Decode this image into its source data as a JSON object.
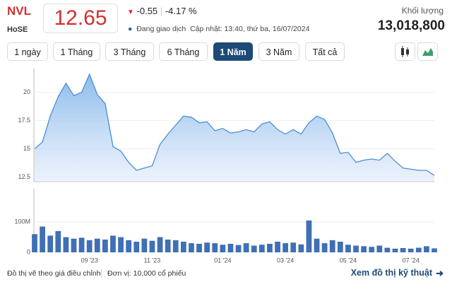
{
  "header": {
    "ticker": "NVL",
    "exchange": "HoSE",
    "price": "12.65",
    "change": "-0.55",
    "change_pct": "-4.17 %",
    "status": "Đang giao dịch",
    "updated": "Cập nhật: 13:40, thứ ba, 16/07/2024",
    "volume_label": "Khối lượng",
    "volume": "13,018,800"
  },
  "range_buttons": {
    "items": [
      "1 ngày",
      "1 Tháng",
      "3 Tháng",
      "6 Tháng",
      "1 Năm",
      "3 Năm",
      "Tất cả"
    ],
    "active": 4
  },
  "chart_data": [
    {
      "type": "area",
      "color": "#4a8fd8",
      "values": [
        15.0,
        15.6,
        17.9,
        19.6,
        20.8,
        19.7,
        20.0,
        21.6,
        19.8,
        19.0,
        15.2,
        14.8,
        13.8,
        13.1,
        13.3,
        13.5,
        15.4,
        16.3,
        17.1,
        17.9,
        17.8,
        17.3,
        17.4,
        16.6,
        16.8,
        16.4,
        16.5,
        16.7,
        16.5,
        17.2,
        17.4,
        16.7,
        16.3,
        16.7,
        16.3,
        17.3,
        17.9,
        17.6,
        16.4,
        14.6,
        14.7,
        13.8,
        14.0,
        14.1,
        14.0,
        14.6,
        13.9,
        13.3,
        13.2,
        13.1,
        13.1,
        12.65
      ],
      "ylim": [
        12.1,
        22.1
      ],
      "yticks": [
        12.5,
        15,
        17.5,
        20
      ],
      "grid": true
    },
    {
      "type": "bar",
      "color": "#3f6fb5",
      "categories": [
        null,
        null,
        null,
        null,
        null,
        null,
        null,
        "09 '23",
        null,
        null,
        null,
        null,
        null,
        null,
        null,
        "11 '23",
        null,
        null,
        null,
        null,
        null,
        null,
        null,
        null,
        "01 '24",
        null,
        null,
        null,
        null,
        null,
        null,
        null,
        "03 '24",
        null,
        null,
        null,
        null,
        null,
        null,
        null,
        "05 '24",
        null,
        null,
        null,
        null,
        null,
        null,
        null,
        "07 '24",
        null,
        null,
        null
      ],
      "values": [
        60000000,
        85000000,
        55000000,
        70000000,
        50000000,
        45000000,
        48000000,
        40000000,
        45000000,
        42000000,
        55000000,
        50000000,
        40000000,
        35000000,
        45000000,
        38000000,
        50000000,
        42000000,
        40000000,
        35000000,
        30000000,
        28000000,
        32000000,
        30000000,
        25000000,
        28000000,
        24000000,
        30000000,
        22000000,
        25000000,
        28000000,
        35000000,
        30000000,
        32000000,
        26000000,
        105000000,
        45000000,
        30000000,
        40000000,
        35000000,
        25000000,
        22000000,
        20000000,
        18000000,
        22000000,
        15000000,
        12000000,
        14000000,
        12000000,
        15000000,
        20000000,
        13000000
      ],
      "ylim": [
        0,
        210000000
      ],
      "yticks": [
        0,
        {
          "value": 100000000,
          "label": "100M"
        }
      ],
      "grid": true
    }
  ],
  "footer": {
    "note": "Đồ thị vẽ theo giá điều chỉnh",
    "unit": "Đơn vị: 10,000 cổ phiếu",
    "link": "Xem đồ thị kỹ thuật"
  }
}
